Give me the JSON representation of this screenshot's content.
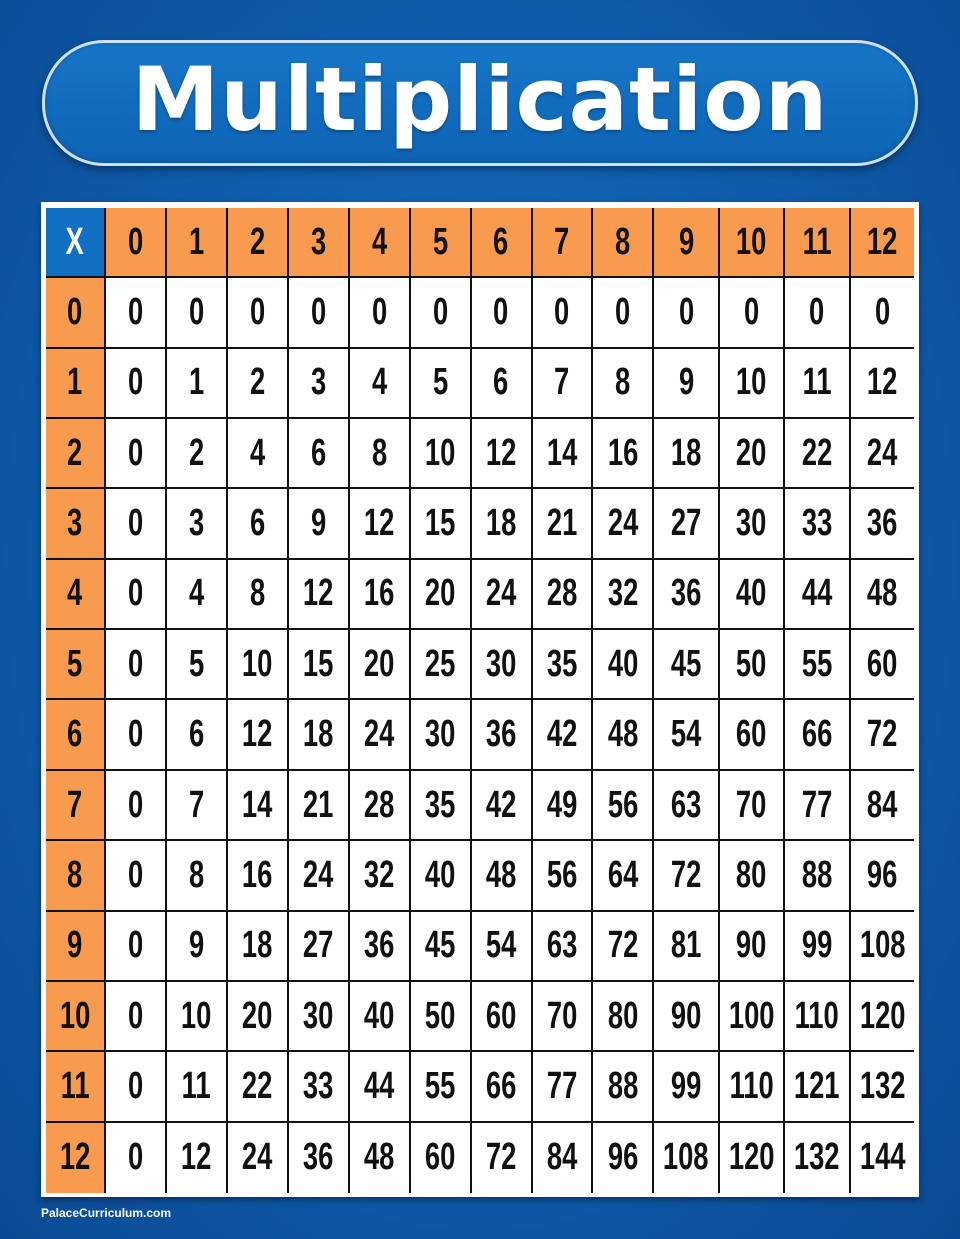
{
  "title": "Multiplication",
  "footer": "PalaceCurriculum.com",
  "colors": {
    "background": "#0f5bab",
    "header": "#f89b4f",
    "corner": "#1170c4",
    "cell": "#ffffff"
  },
  "chart_data": {
    "type": "table",
    "corner_label": "X",
    "column_headers": [
      "0",
      "1",
      "2",
      "3",
      "4",
      "5",
      "6",
      "7",
      "8",
      "9",
      "10",
      "11",
      "12"
    ],
    "row_headers": [
      "0",
      "1",
      "2",
      "3",
      "4",
      "5",
      "6",
      "7",
      "8",
      "9",
      "10",
      "11",
      "12"
    ],
    "rows": [
      [
        "0",
        "0",
        "0",
        "0",
        "0",
        "0",
        "0",
        "0",
        "0",
        "0",
        "0",
        "0",
        "0"
      ],
      [
        "0",
        "1",
        "2",
        "3",
        "4",
        "5",
        "6",
        "7",
        "8",
        "9",
        "10",
        "11",
        "12"
      ],
      [
        "0",
        "2",
        "4",
        "6",
        "8",
        "10",
        "12",
        "14",
        "16",
        "18",
        "20",
        "22",
        "24"
      ],
      [
        "0",
        "3",
        "6",
        "9",
        "12",
        "15",
        "18",
        "21",
        "24",
        "27",
        "30",
        "33",
        "36"
      ],
      [
        "0",
        "4",
        "8",
        "12",
        "16",
        "20",
        "24",
        "28",
        "32",
        "36",
        "40",
        "44",
        "48"
      ],
      [
        "0",
        "5",
        "10",
        "15",
        "20",
        "25",
        "30",
        "35",
        "40",
        "45",
        "50",
        "55",
        "60"
      ],
      [
        "0",
        "6",
        "12",
        "18",
        "24",
        "30",
        "36",
        "42",
        "48",
        "54",
        "60",
        "66",
        "72"
      ],
      [
        "0",
        "7",
        "14",
        "21",
        "28",
        "35",
        "42",
        "49",
        "56",
        "63",
        "70",
        "77",
        "84"
      ],
      [
        "0",
        "8",
        "16",
        "24",
        "32",
        "40",
        "48",
        "56",
        "64",
        "72",
        "80",
        "88",
        "96"
      ],
      [
        "0",
        "9",
        "18",
        "27",
        "36",
        "45",
        "54",
        "63",
        "72",
        "81",
        "90",
        "99",
        "108"
      ],
      [
        "0",
        "10",
        "20",
        "30",
        "40",
        "50",
        "60",
        "70",
        "80",
        "90",
        "100",
        "110",
        "120"
      ],
      [
        "0",
        "11",
        "22",
        "33",
        "44",
        "55",
        "66",
        "77",
        "88",
        "99",
        "110",
        "121",
        "132"
      ],
      [
        "0",
        "12",
        "24",
        "36",
        "48",
        "60",
        "72",
        "84",
        "96",
        "108",
        "120",
        "132",
        "144"
      ]
    ]
  }
}
